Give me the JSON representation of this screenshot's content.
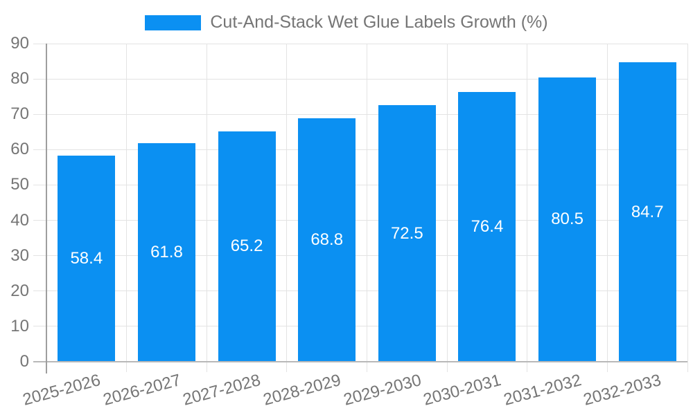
{
  "chart_data": {
    "type": "bar",
    "title": "Cut-And-Stack Wet Glue Labels Growth (%)",
    "legend_entries": [
      "Cut-And-Stack Wet Glue Labels Growth (%)"
    ],
    "legend_position": "top-center",
    "categories": [
      "2025-2026",
      "2026-2027",
      "2027-2028",
      "2028-2029",
      "2029-2030",
      "2030-2031",
      "2031-2032",
      "2032-2033"
    ],
    "values": [
      58.4,
      61.8,
      65.2,
      68.8,
      72.5,
      76.4,
      80.5,
      84.7
    ],
    "value_labels_shown_inside_bars": true,
    "xlabel": "",
    "ylabel": "",
    "ylim": [
      0,
      90
    ],
    "yticks": [
      0,
      10,
      20,
      30,
      40,
      50,
      60,
      70,
      80,
      90
    ],
    "grid": "horizontal and vertical light-gray gridlines",
    "x_tick_rotation_deg": -15,
    "colors": {
      "bar": "#0b90f2",
      "value_label": "#ffffff",
      "axis_text": "#757575",
      "gridline": "#e3e3e3",
      "x_axis_line": "#b8b8b8",
      "y_axis_line": "#9e9e9e",
      "background": "#ffffff"
    }
  }
}
